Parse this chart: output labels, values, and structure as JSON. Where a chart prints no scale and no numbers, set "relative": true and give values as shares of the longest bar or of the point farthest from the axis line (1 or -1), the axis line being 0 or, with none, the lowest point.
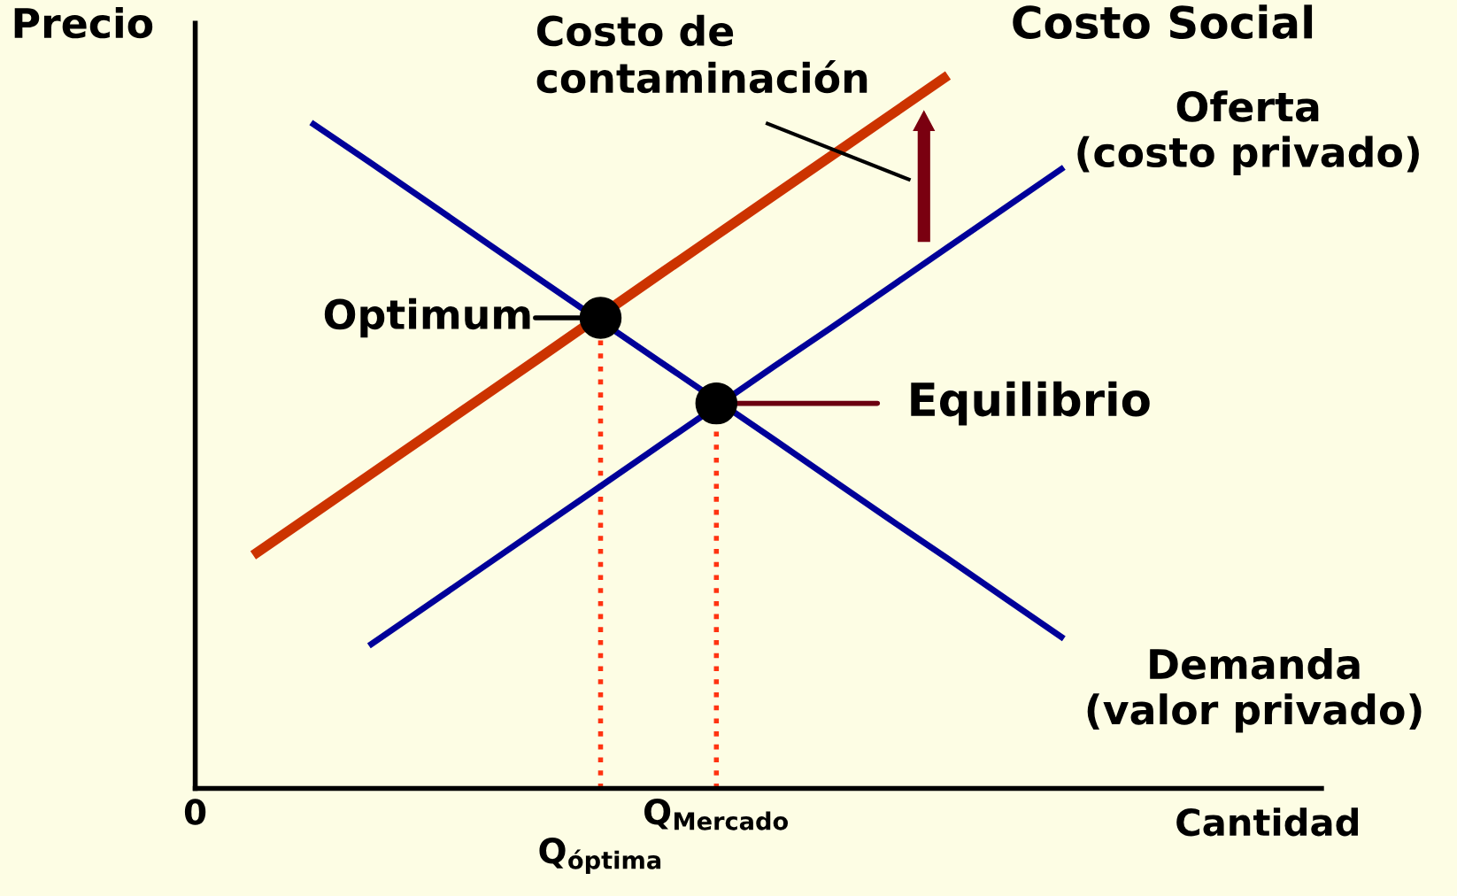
{
  "chart_data": {
    "type": "line",
    "relative": true,
    "xlabel": "Cantidad",
    "ylabel": "Precio",
    "categories": [
      "0",
      null,
      null,
      null,
      null,
      null,
      null,
      "Q$_{óptima}$",
      null,
      "Q$_{Mercado}$",
      null,
      null,
      null,
      null,
      null,
      null,
      null,
      null,
      null,
      null
    ],
    "tick_labels": "x",
    "grid": false,
    "marker": "none",
    "line_style": "solid",
    "series": [
      {
        "name": "Costo Social",
        "color": "#cc3300",
        "values": [
          null,
          0.327,
          0.383,
          0.439,
          0.495,
          0.551,
          0.607,
          null,
          0.72,
          0.776,
          0.832,
          0.888,
          0.944,
          1,
          null,
          null,
          null,
          null,
          null,
          null
        ]
      },
      {
        "name": "Oferta\n(costo privado)",
        "color": "#000099",
        "values": [
          null,
          null,
          null,
          0.2,
          0.256,
          0.312,
          0.368,
          0.424,
          0.48,
          null,
          0.592,
          0.647,
          0.703,
          0.759,
          0.815,
          0.871,
          null,
          null,
          null,
          null
        ]
      },
      {
        "name": "Demanda\n(valor privado)",
        "color": "#000099",
        "values": [
          null,
          null,
          0.934,
          0.879,
          0.823,
          0.767,
          0.711,
          null,
          0.6,
          null,
          0.489,
          0.433,
          0.377,
          0.322,
          0.266,
          0.21,
          null,
          null,
          null,
          null
        ]
      },
      {
        "type": "lollipop",
        "color": "#ff3311",
        "line_style": "dotted",
        "marker": "circle",
        "values": [
          null,
          null,
          null,
          null,
          null,
          null,
          null,
          0.66,
          null,
          0.54,
          null,
          null,
          null,
          null,
          null,
          null,
          null,
          null,
          null,
          null
        ],
        "colors": [
          null,
          null,
          null,
          null,
          null,
          null,
          null,
          "#000000",
          null,
          "#000000",
          null,
          null,
          null,
          null,
          null,
          null,
          null,
          null,
          null,
          null
        ]
      }
    ],
    "annotations": [
      "Costo de\ncontaminación",
      {
        "text": "Optimum",
        "x": "Q$_{óptima}$",
        "y": 0.66
      },
      {
        "text": "Equilibrio",
        "x": "Q$_{Mercado}$",
        "y": 0.54
      }
    ]
  }
}
